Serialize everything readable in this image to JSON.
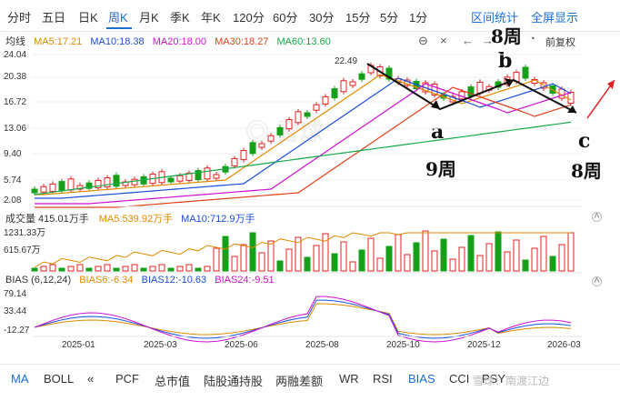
{
  "tabs": [
    "分时",
    "五日",
    "日K",
    "周K",
    "月K",
    "季K",
    "年K",
    "120分",
    "60分",
    "30分",
    "15分",
    "5分",
    "1分"
  ],
  "active_tab": "周K",
  "top_right": {
    "interval_stats": "区间统计",
    "fullscreen": "全屏显示"
  },
  "ma_legend": {
    "title": "均线",
    "ma5": "MA5:17.21",
    "ma10": "MA10:18.38",
    "ma20": "MA20:18.00",
    "ma30": "MA30:18.27",
    "ma60": "MA60:13.60"
  },
  "adjust": "前复权",
  "price_axis": [
    "24.04",
    "20.38",
    "16.72",
    "13.06",
    "9.40",
    "5.74",
    "2.08"
  ],
  "peak_label": "22.49",
  "volume": {
    "title": "成交量 415.01万手",
    "ma5": "MA5:539.92万手",
    "ma10": "MA10:712.9万手",
    "axis_top": "1231.33万",
    "axis_mid": "615.67万"
  },
  "bias": {
    "title": "BIAS (6,12,24)",
    "bias6": "BIAS6:-6.34",
    "bias12": "BIAS12:-10.63",
    "bias24": "BIAS24:-9.51",
    "axis": [
      "79.14",
      "33.44",
      "-12.27"
    ]
  },
  "x_axis": [
    "2025-01",
    "2025-03",
    "2025-06",
    "2025-08",
    "2025-10",
    "2025-12",
    "2026-03"
  ],
  "annotations": {
    "a": "a",
    "b": "b",
    "c": "c",
    "wa": "9周",
    "wb": "8周",
    "wc": "8周"
  },
  "bottom_tabs": [
    "MA",
    "BOLL",
    "«",
    "PCF",
    "总市值",
    "陆股通持股",
    "两融差额",
    "WR",
    "RSI",
    "BIAS",
    "CCI",
    "PSY"
  ],
  "active_bottom": "BIAS",
  "watermark": "雪球：南渡江边",
  "colors": {
    "ma5": "#e08a00",
    "ma10": "#1a4fd6",
    "ma20": "#d10fd1",
    "ma30": "#e0401a",
    "ma60": "#17a84a",
    "up": "#e02020",
    "down": "#16a01a",
    "accent": "#1a6fd1"
  }
}
